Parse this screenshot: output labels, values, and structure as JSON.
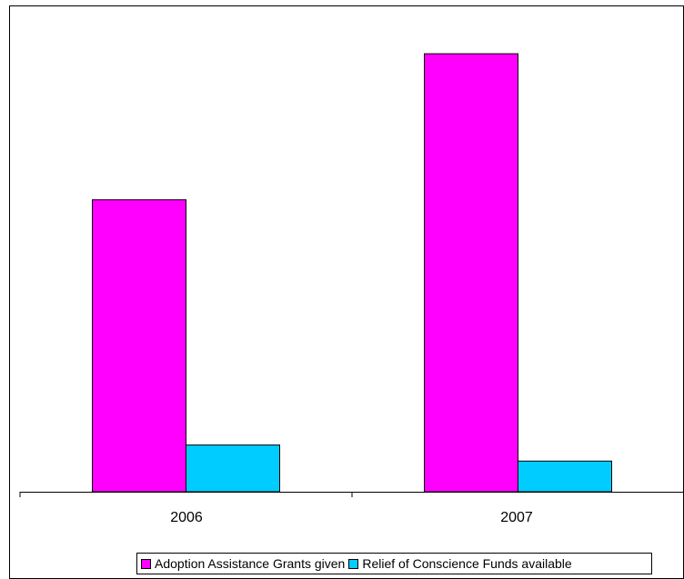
{
  "chart_data": {
    "type": "bar",
    "categories": [
      "2006",
      "2007"
    ],
    "series": [
      {
        "name": "Adoption Assistance Grants given",
        "color": "#ff00ff",
        "values": [
          100,
          150
        ]
      },
      {
        "name": "Relief of Conscience Funds available",
        "color": "#00ccff",
        "values": [
          16,
          10.5
        ]
      }
    ],
    "ylim": [
      0,
      160
    ],
    "grid": false,
    "y_axis_visible": false,
    "legend_position": "bottom"
  }
}
